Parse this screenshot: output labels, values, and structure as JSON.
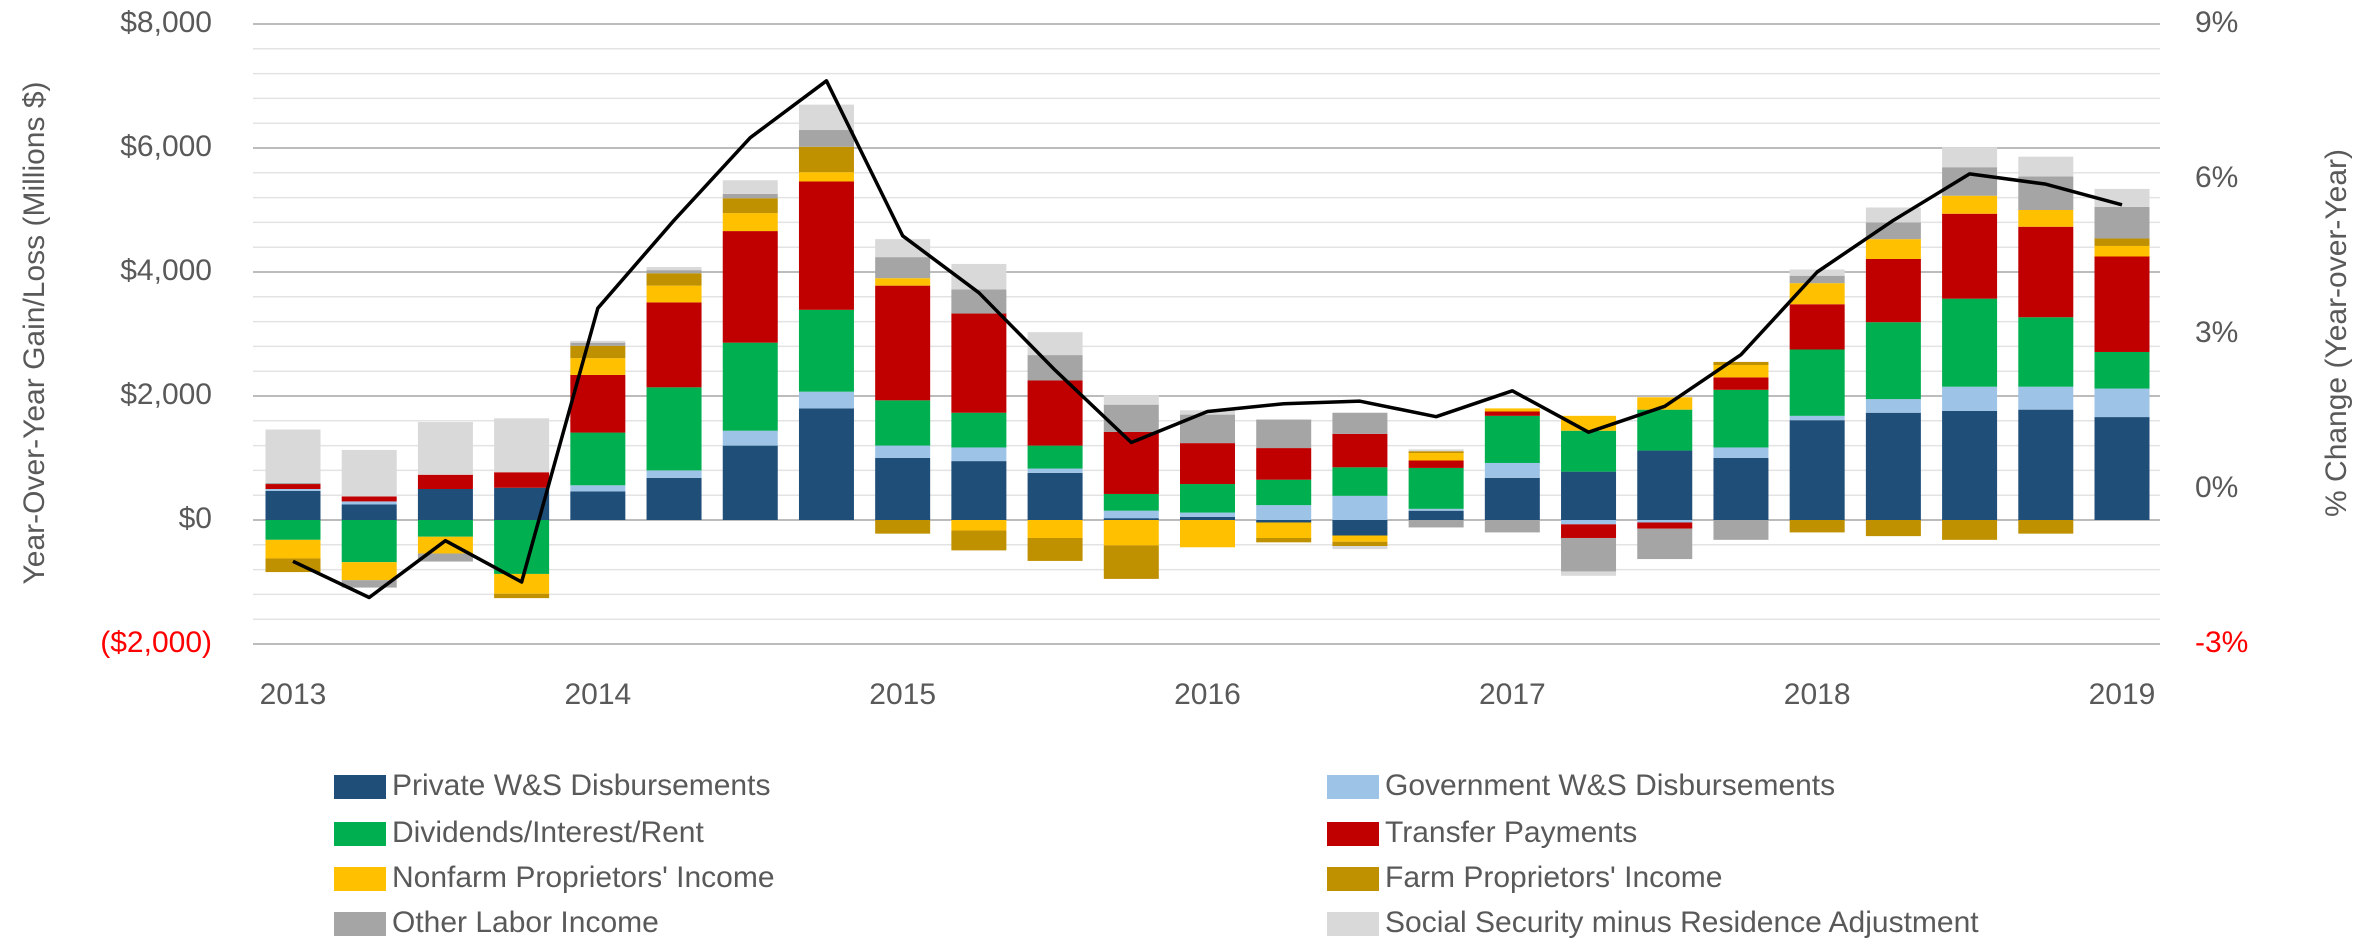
{
  "chart_data": {
    "type": "bar",
    "stacked": true,
    "ylabel": "Year-Over-Year Gain/Loss (Millions $)",
    "y2label": "% Change (Year-over-Year)",
    "categories": [
      "2013",
      null,
      null,
      null,
      "2014",
      null,
      null,
      null,
      "2015",
      null,
      null,
      null,
      "2016",
      null,
      null,
      null,
      "2017",
      null,
      null,
      null,
      "2018",
      null,
      null,
      null,
      "2019"
    ],
    "ylim": [
      -2000,
      8000
    ],
    "yticks": [
      {
        "value": -2000,
        "label": "($2,000)",
        "color": "#ff0000"
      },
      {
        "value": 0,
        "label": "$0"
      },
      {
        "value": 2000,
        "label": "$2,000"
      },
      {
        "value": 4000,
        "label": "$4,000"
      },
      {
        "value": 6000,
        "label": "$6,000"
      },
      {
        "value": 8000,
        "label": "$8,000"
      }
    ],
    "y2lim": [
      -3,
      9
    ],
    "y2ticks": [
      {
        "value": -3,
        "label": "-3%",
        "color": "#ff0000"
      },
      {
        "value": 0,
        "label": "0%"
      },
      {
        "value": 3,
        "label": "3%"
      },
      {
        "value": 6,
        "label": "6%"
      },
      {
        "value": 9,
        "label": "9%"
      }
    ],
    "grid": true,
    "minor_grid": true,
    "legend": "bottom",
    "series": [
      {
        "name": "Private W&S Disbursements",
        "color": "#1f4e79",
        "values": [
          470,
          250,
          500,
          520,
          460,
          680,
          1200,
          1800,
          1000,
          950,
          760,
          30,
          50,
          -40,
          -250,
          150,
          680,
          780,
          1120,
          1000,
          1610,
          1730,
          1760,
          1780,
          1660
        ]
      },
      {
        "name": "Government W&S Disbursements",
        "color": "#9dc3e6",
        "values": [
          30,
          50,
          0,
          0,
          100,
          120,
          240,
          270,
          200,
          220,
          70,
          120,
          70,
          240,
          390,
          30,
          240,
          -70,
          -40,
          170,
          70,
          220,
          390,
          370,
          460
        ]
      },
      {
        "name": "Dividends/Interest/Rent",
        "color": "#00b050",
        "values": [
          -320,
          -680,
          -270,
          -870,
          850,
          1340,
          1420,
          1320,
          730,
          560,
          370,
          270,
          460,
          410,
          460,
          660,
          760,
          660,
          660,
          930,
          1070,
          1240,
          1420,
          1120,
          590
        ]
      },
      {
        "name": "Transfer Payments",
        "color": "#c00000",
        "values": [
          80,
          80,
          230,
          250,
          930,
          1370,
          1800,
          2070,
          1850,
          1600,
          1050,
          1000,
          660,
          510,
          540,
          120,
          70,
          -220,
          -100,
          200,
          730,
          1020,
          1370,
          1460,
          1540
        ]
      },
      {
        "name": "Nonfarm Proprietors' Income",
        "color": "#ffc000",
        "values": [
          -300,
          -290,
          -270,
          -320,
          270,
          270,
          290,
          150,
          120,
          -170,
          -290,
          -410,
          -440,
          -250,
          -100,
          120,
          50,
          240,
          200,
          200,
          340,
          320,
          290,
          270,
          170
        ]
      },
      {
        "name": "Farm Proprietors' Income",
        "color": "#bf9000",
        "values": [
          -220,
          0,
          0,
          -70,
          200,
          200,
          240,
          410,
          -220,
          -320,
          -370,
          -540,
          0,
          -70,
          -70,
          30,
          0,
          0,
          0,
          50,
          -200,
          -260,
          -320,
          -220,
          120
        ]
      },
      {
        "name": "Other Labor Income",
        "color": "#a5a5a5",
        "values": [
          20,
          -120,
          -130,
          0,
          50,
          50,
          70,
          270,
          340,
          390,
          410,
          440,
          460,
          460,
          340,
          -120,
          -200,
          -540,
          -490,
          -320,
          120,
          270,
          460,
          540,
          510
        ]
      },
      {
        "name": "Social Security minus Residence Adjustment",
        "color": "#d9d9d9",
        "values": [
          860,
          750,
          850,
          870,
          30,
          50,
          220,
          410,
          290,
          410,
          370,
          150,
          70,
          0,
          -50,
          30,
          0,
          -70,
          0,
          0,
          100,
          240,
          320,
          320,
          290
        ]
      },
      {
        "type": "line",
        "axis": "y2",
        "color": "#000000",
        "values": [
          -1.4,
          -2.1,
          -1.0,
          -1.8,
          3.5,
          5.2,
          6.8,
          7.9,
          4.9,
          3.8,
          2.3,
          0.9,
          1.5,
          1.65,
          1.7,
          1.4,
          1.9,
          1.1,
          1.6,
          2.6,
          4.2,
          5.2,
          6.1,
          5.9,
          5.5
        ]
      }
    ]
  }
}
